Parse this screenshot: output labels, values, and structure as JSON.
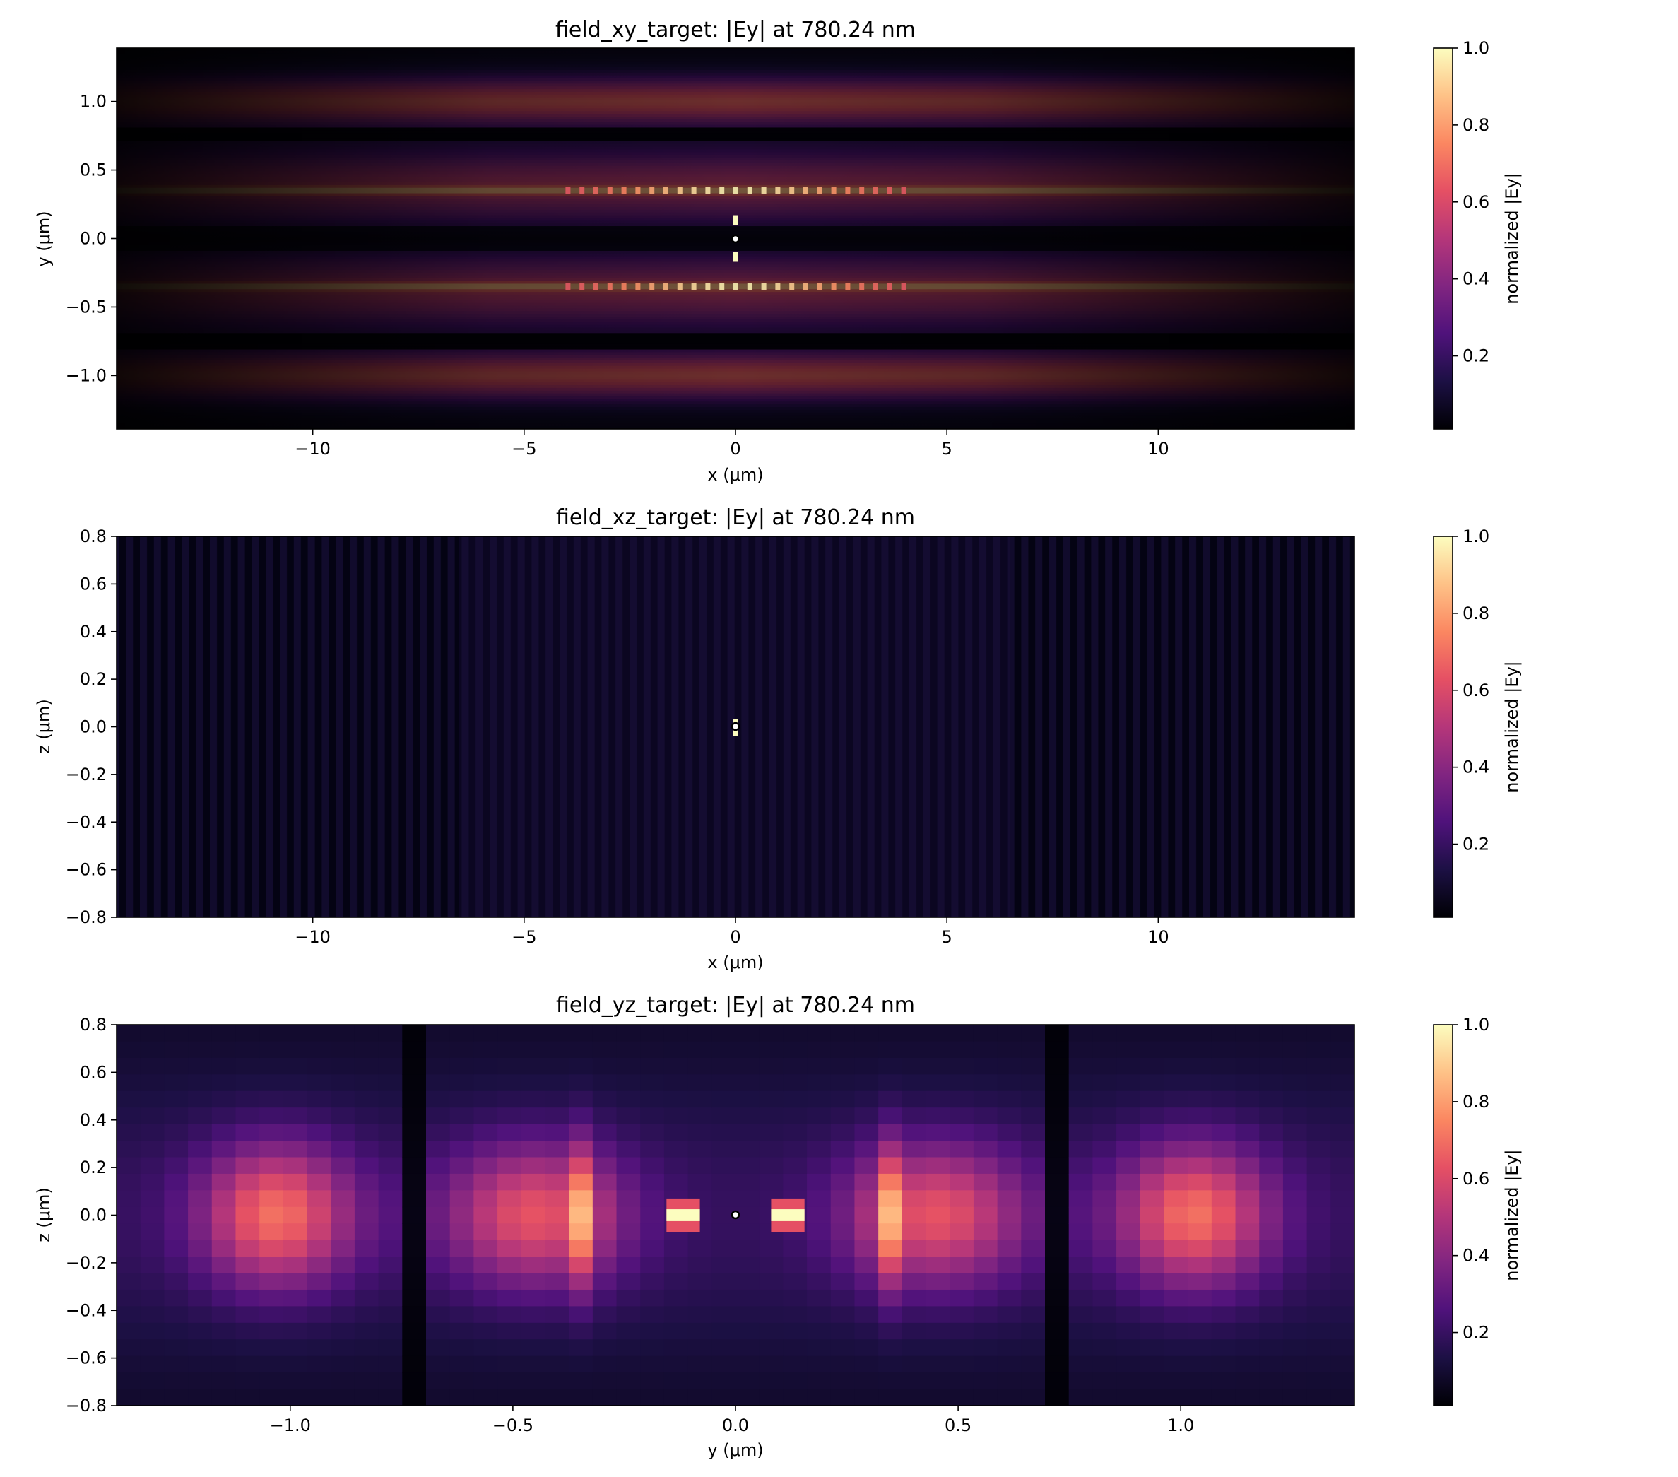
{
  "colorscale": [
    "#000004",
    "#1c1044",
    "#4f127b",
    "#812581",
    "#b5367a",
    "#e55064",
    "#fb8761",
    "#fec287",
    "#fcfdbf"
  ],
  "chart_data": [
    {
      "type": "heatmap",
      "title": "field_xy_target: |Ey| at 780.24 nm",
      "xlabel": "x (μm)",
      "ylabel": "y (μm)",
      "xlim": [
        -14.64,
        14.64
      ],
      "ylim": [
        -1.39,
        1.39
      ],
      "xticks": [
        {
          "v": -10,
          "label": "−10"
        },
        {
          "v": -5,
          "label": "−5"
        },
        {
          "v": 0,
          "label": "0"
        },
        {
          "v": 5,
          "label": "5"
        },
        {
          "v": 10,
          "label": "10"
        }
      ],
      "yticks": [
        {
          "v": 1.0,
          "label": "1.0"
        },
        {
          "v": 0.5,
          "label": "0.5"
        },
        {
          "v": 0.0,
          "label": "0.0"
        },
        {
          "v": -0.5,
          "label": "−0.5"
        },
        {
          "v": -1.0,
          "label": "−1.0"
        }
      ],
      "colorbar": {
        "label": "normalized |Ey|",
        "ticks": [
          "0.2",
          "0.4",
          "0.6",
          "0.8",
          "1.0"
        ],
        "range": [
          0.01,
          1.0
        ]
      },
      "marker": {
        "x": 0,
        "y": 0
      },
      "grid": false
    },
    {
      "type": "heatmap",
      "title": "field_xz_target: |Ey| at 780.24 nm",
      "xlabel": "x (μm)",
      "ylabel": "z (μm)",
      "xlim": [
        -14.64,
        14.64
      ],
      "ylim": [
        -0.8,
        0.8
      ],
      "xticks": [
        {
          "v": -10,
          "label": "−10"
        },
        {
          "v": -5,
          "label": "−5"
        },
        {
          "v": 0,
          "label": "0"
        },
        {
          "v": 5,
          "label": "5"
        },
        {
          "v": 10,
          "label": "10"
        }
      ],
      "yticks": [
        {
          "v": 0.8,
          "label": "0.8"
        },
        {
          "v": 0.6,
          "label": "0.6"
        },
        {
          "v": 0.4,
          "label": "0.4"
        },
        {
          "v": 0.2,
          "label": "0.2"
        },
        {
          "v": 0.0,
          "label": "0.0"
        },
        {
          "v": -0.2,
          "label": "−0.2"
        },
        {
          "v": -0.4,
          "label": "−0.4"
        },
        {
          "v": -0.6,
          "label": "−0.6"
        },
        {
          "v": -0.8,
          "label": "−0.8"
        }
      ],
      "colorbar": {
        "label": "normalized |Ey|",
        "ticks": [
          "0.2",
          "0.4",
          "0.6",
          "0.8",
          "1.0"
        ],
        "range": [
          0.01,
          1.0
        ]
      },
      "marker": {
        "x": 0,
        "y": 0
      },
      "grid": false
    },
    {
      "type": "heatmap",
      "title": "field_yz_target: |Ey| at 780.24 nm",
      "xlabel": "y (μm)",
      "ylabel": "z (μm)",
      "xlim": [
        -1.39,
        1.39
      ],
      "ylim": [
        -0.8,
        0.8
      ],
      "xticks": [
        {
          "v": -1.0,
          "label": "−1.0"
        },
        {
          "v": -0.5,
          "label": "−0.5"
        },
        {
          "v": 0.0,
          "label": "0.0"
        },
        {
          "v": 0.5,
          "label": "0.5"
        },
        {
          "v": 1.0,
          "label": "1.0"
        }
      ],
      "yticks": [
        {
          "v": 0.8,
          "label": "0.8"
        },
        {
          "v": 0.6,
          "label": "0.6"
        },
        {
          "v": 0.4,
          "label": "0.4"
        },
        {
          "v": 0.2,
          "label": "0.2"
        },
        {
          "v": 0.0,
          "label": "0.0"
        },
        {
          "v": -0.2,
          "label": "−0.2"
        },
        {
          "v": -0.4,
          "label": "−0.4"
        },
        {
          "v": -0.6,
          "label": "−0.6"
        },
        {
          "v": -0.8,
          "label": "−0.8"
        }
      ],
      "colorbar": {
        "label": "normalized |Ey|",
        "ticks": [
          "0.2",
          "0.4",
          "0.6",
          "0.8",
          "1.0"
        ],
        "range": [
          0.01,
          1.0
        ]
      },
      "marker": {
        "x": 0,
        "y": 0
      },
      "grid": false
    }
  ]
}
